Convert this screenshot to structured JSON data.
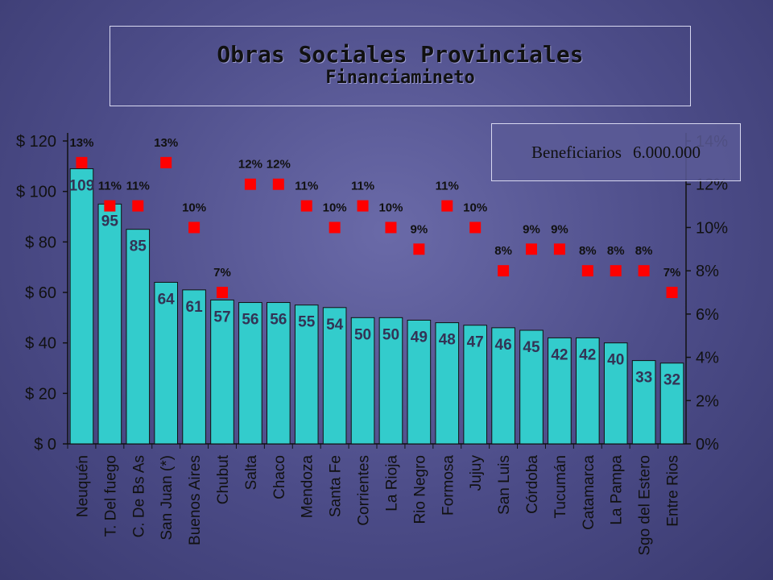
{
  "title": "Obras Sociales Provinciales",
  "subtitle": "Financiamineto",
  "beneficiarios_label": "Beneficiarios",
  "beneficiarios_value": "6.000.000",
  "colors": {
    "bar": "#33cccc",
    "marker": "#ff0000"
  },
  "chart_data": {
    "type": "bar",
    "categories": [
      "Neuquén",
      "T. Del fuego",
      "C. De Bs As",
      "San Juan (*)",
      "Buenos Aires",
      "Chubut",
      "Salta",
      "Chaco",
      "Mendoza",
      "Santa Fe",
      "Corrientes",
      "La Rioja",
      "Rio Negro",
      "Formosa",
      "Jujuy",
      "San Luis",
      "Córdoba",
      "Tucumán",
      "Catamarca",
      "La Pampa",
      "Sgo del Estero",
      "Entre Rios"
    ],
    "series": [
      {
        "values": [
          109,
          95,
          85,
          64,
          61,
          57,
          56,
          56,
          55,
          54,
          50,
          50,
          49,
          48,
          47,
          46,
          45,
          42,
          42,
          40,
          33,
          32
        ]
      },
      {
        "axis": "right",
        "values": [
          13,
          11,
          11,
          13,
          10,
          7,
          12,
          12,
          11,
          10,
          11,
          10,
          9,
          11,
          10,
          8,
          9,
          9,
          8,
          8,
          8,
          7
        ]
      }
    ],
    "pct_labels": [
      "13%",
      "11%",
      "11%",
      "13%",
      "10%",
      "7%",
      "12%",
      "12%",
      "11%",
      "10%",
      "11%",
      "10%",
      "9%",
      "11%",
      "10%",
      "8%",
      "9%",
      "9%",
      "8%",
      "8%",
      "8%",
      "7%"
    ],
    "y_left_ticks": [
      "$ 0",
      "$ 20",
      "$ 40",
      "$ 60",
      "$ 80",
      "$ 100",
      "$ 120"
    ],
    "y_right_ticks": [
      "0%",
      "2%",
      "4%",
      "6%",
      "8%",
      "10%",
      "12%",
      "14%"
    ],
    "ylim_left": [
      0,
      120
    ],
    "ylim_right": [
      0,
      14
    ]
  }
}
